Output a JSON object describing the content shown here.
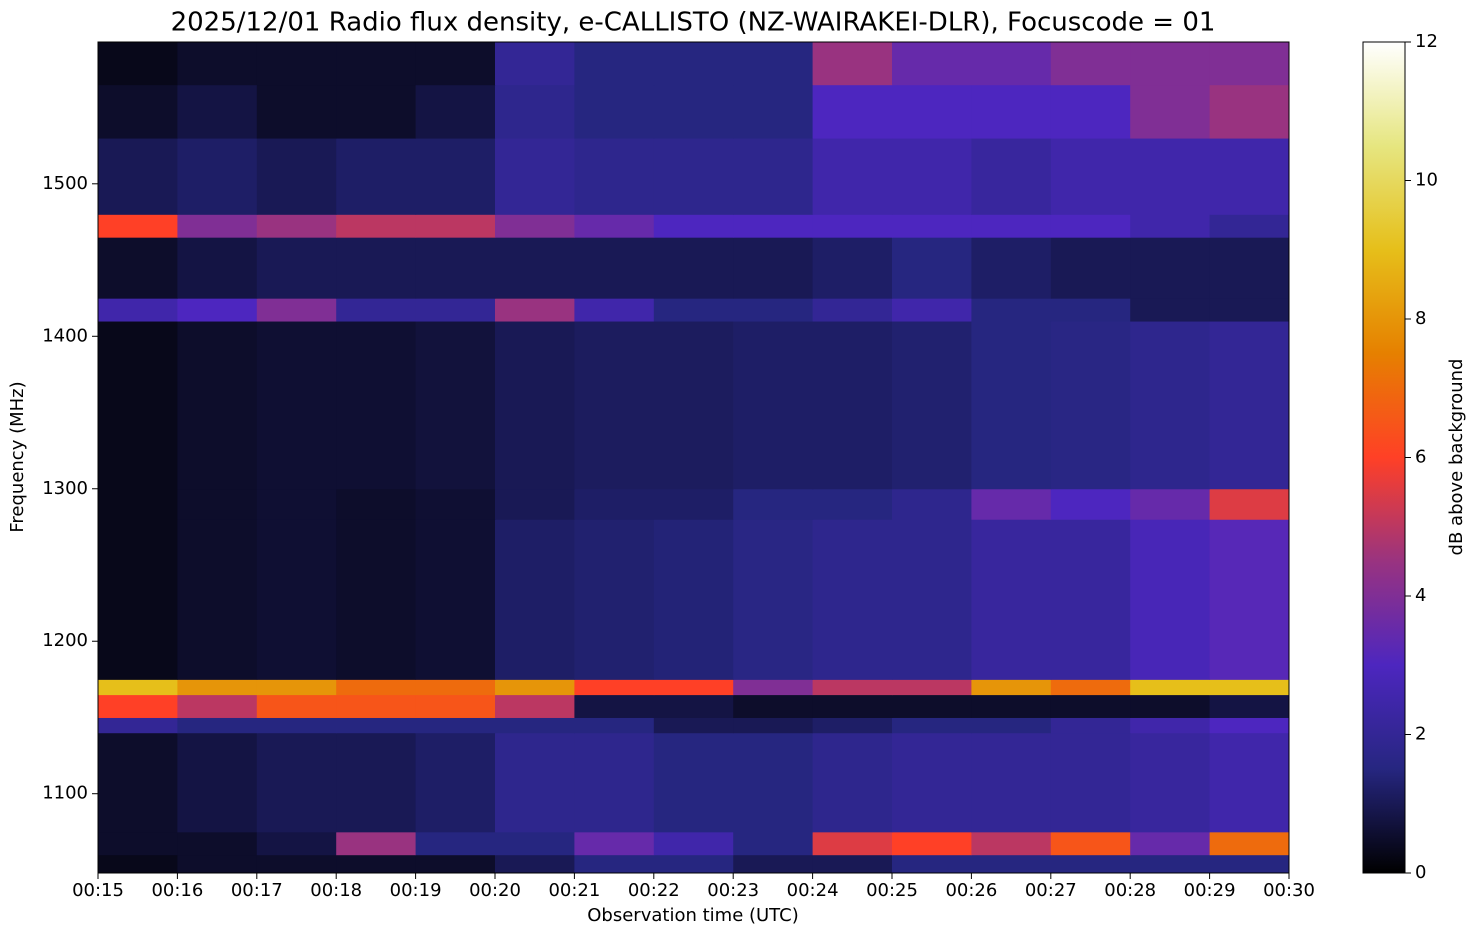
{
  "chart_data": {
    "type": "heatmap",
    "title": "2025/12/01 Radio flux density, e-CALLISTO (NZ-WAIRAKEI-DLR), Focuscode = 01",
    "xlabel": "Observation time (UTC)",
    "ylabel": "Frequency (MHz)",
    "colorbar_label": "dB above background",
    "colormap": "CMRmap",
    "xlim": [
      15,
      30
    ],
    "xticks": [
      {
        "value": 15,
        "label": "00:15"
      },
      {
        "value": 16,
        "label": "00:16"
      },
      {
        "value": 17,
        "label": "00:17"
      },
      {
        "value": 18,
        "label": "00:18"
      },
      {
        "value": 19,
        "label": "00:19"
      },
      {
        "value": 20,
        "label": "00:20"
      },
      {
        "value": 21,
        "label": "00:21"
      },
      {
        "value": 22,
        "label": "00:22"
      },
      {
        "value": 23,
        "label": "00:23"
      },
      {
        "value": 24,
        "label": "00:24"
      },
      {
        "value": 25,
        "label": "00:25"
      },
      {
        "value": 26,
        "label": "00:26"
      },
      {
        "value": 27,
        "label": "00:27"
      },
      {
        "value": 28,
        "label": "00:28"
      },
      {
        "value": 29,
        "label": "00:29"
      },
      {
        "value": 30,
        "label": "00:30"
      }
    ],
    "ylim": [
      1048,
      1593
    ],
    "yticks": [
      1100,
      1200,
      1300,
      1400,
      1500
    ],
    "zlim": [
      0,
      12
    ],
    "zticks": [
      0,
      2,
      4,
      6,
      8,
      10,
      12
    ],
    "xbins": [
      15,
      16,
      17,
      18,
      19,
      20,
      21,
      22,
      23,
      24,
      25,
      26,
      27,
      28,
      29,
      30
    ],
    "ybins": [
      1048,
      1060,
      1075,
      1140,
      1150,
      1165,
      1175,
      1280,
      1300,
      1410,
      1425,
      1465,
      1480,
      1530,
      1565,
      1593
    ],
    "z": [
      [
        0.3,
        0.5,
        0.5,
        0.5,
        0.5,
        1,
        1.5,
        1.5,
        1,
        1,
        1.5,
        1.5,
        1.5,
        1.5,
        1.5
      ],
      [
        0.5,
        0.5,
        0.8,
        4.5,
        1.5,
        1.5,
        3.5,
        2.5,
        1.5,
        5.5,
        6,
        5,
        6.5,
        3.5,
        7
      ],
      [
        0.5,
        0.8,
        1,
        1,
        1.2,
        1.8,
        1.8,
        1.5,
        1.5,
        1.8,
        2,
        2,
        2,
        2.2,
        2.5
      ],
      [
        2,
        1.5,
        1.5,
        1.5,
        1.5,
        1.5,
        1.5,
        1,
        1,
        1.2,
        1.5,
        1.5,
        2,
        2.5,
        3
      ],
      [
        6,
        5,
        6.5,
        6.5,
        6.5,
        5,
        0.8,
        0.8,
        0.5,
        0.5,
        0.5,
        0.5,
        0.5,
        0.5,
        0.8
      ],
      [
        9,
        8,
        8,
        7,
        7,
        8,
        6,
        6,
        4,
        5,
        5,
        8,
        7,
        9,
        9
      ],
      [
        0.3,
        0.5,
        0.6,
        0.5,
        0.6,
        1.2,
        1.3,
        1.4,
        1.6,
        1.8,
        1.8,
        2.2,
        2.2,
        2.8,
        3.2
      ],
      [
        0.3,
        0.5,
        0.6,
        0.5,
        0.6,
        1,
        1.2,
        1.2,
        1.5,
        1.5,
        1.8,
        3.5,
        3,
        3.5,
        5.5
      ],
      [
        0.3,
        0.5,
        0.6,
        0.6,
        0.7,
        1,
        1.1,
        1.1,
        1.2,
        1.2,
        1.3,
        1.5,
        1.6,
        1.8,
        2
      ],
      [
        2.5,
        3,
        4,
        2,
        2,
        4.5,
        2.5,
        1.5,
        1.5,
        2,
        2.5,
        1.5,
        1.5,
        1,
        1
      ],
      [
        0.5,
        0.8,
        1,
        1,
        1,
        1,
        1,
        1,
        1,
        1.2,
        1.5,
        1.2,
        1,
        1,
        1
      ],
      [
        6,
        4,
        4.5,
        5,
        5,
        4,
        3.5,
        3,
        3,
        3,
        3,
        3,
        3,
        2.5,
        2
      ],
      [
        1,
        1.2,
        1,
        1.2,
        1.2,
        2,
        1.8,
        1.8,
        1.8,
        2.5,
        2.5,
        2.2,
        2.5,
        2.5,
        2.5
      ],
      [
        0.5,
        0.8,
        0.5,
        0.5,
        0.8,
        1.8,
        1.5,
        1.5,
        1.5,
        3,
        3,
        3,
        3,
        4,
        4.5
      ],
      [
        0.3,
        0.5,
        0.5,
        0.5,
        0.5,
        2,
        1.5,
        1.5,
        1.5,
        4.5,
        3.5,
        3.5,
        4,
        4,
        4
      ]
    ]
  }
}
